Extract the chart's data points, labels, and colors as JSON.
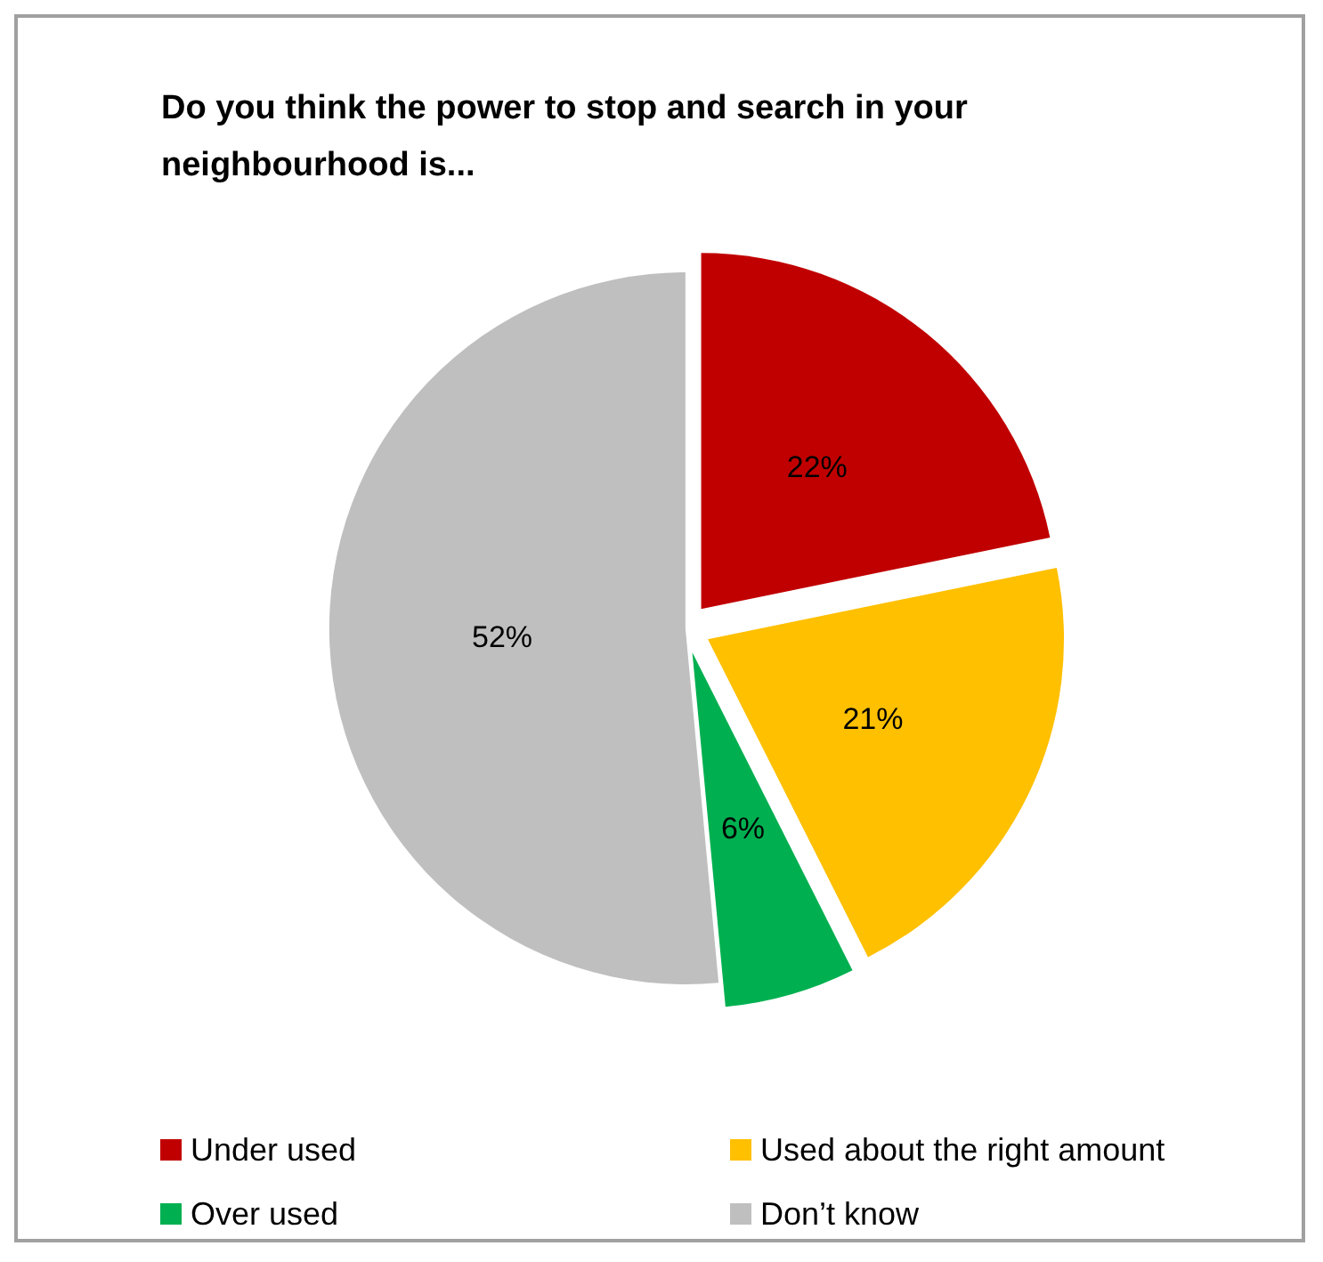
{
  "chart_data": {
    "type": "pie",
    "title": "Do you think the power to stop and search in your neighbourhood is...",
    "categories": [
      "Under used",
      "Used about the right amount",
      "Over used",
      "Don’t know"
    ],
    "values": [
      22,
      21,
      6,
      52
    ],
    "value_labels": [
      "22%",
      "21%",
      "6%",
      "52%"
    ],
    "colors": [
      "#c00000",
      "#ffc000",
      "#00b050",
      "#bfbfbf"
    ],
    "legend": "bottom"
  }
}
